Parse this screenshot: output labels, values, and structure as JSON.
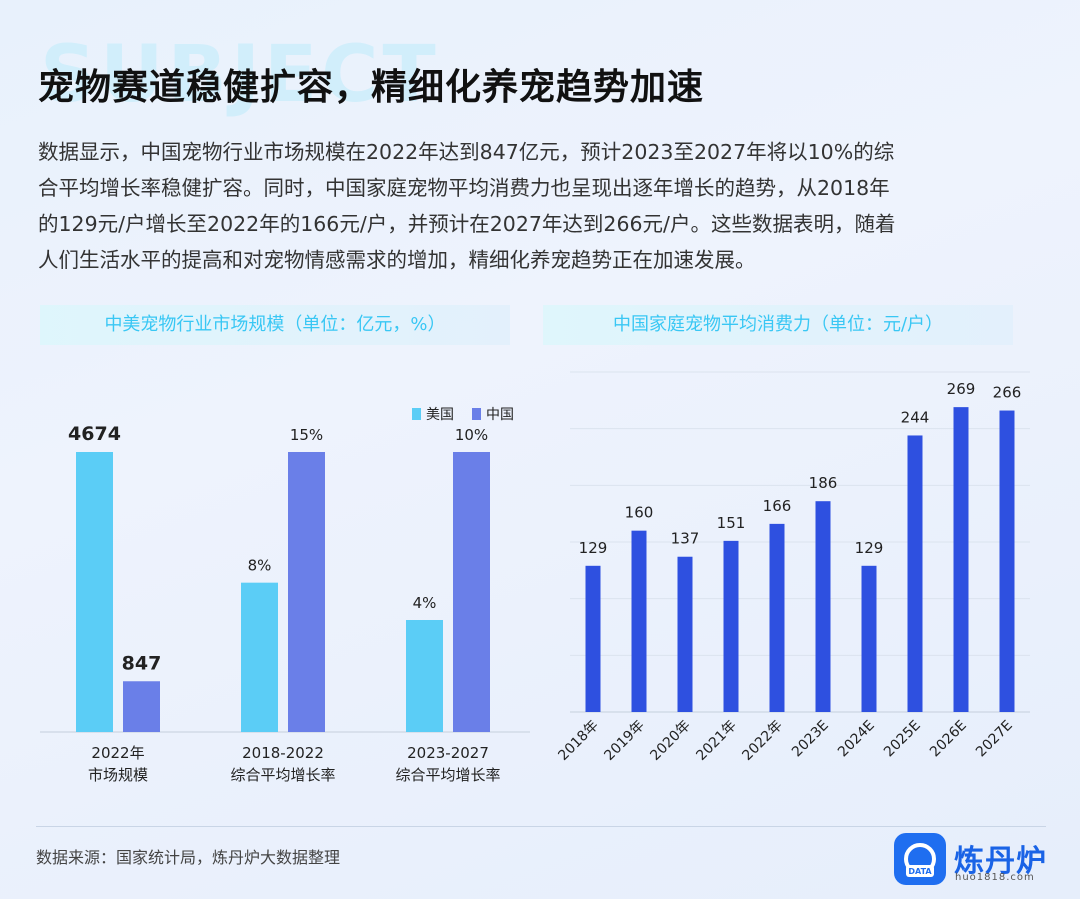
{
  "watermark": "SUBJECT",
  "title": "宠物赛道稳健扩容，精细化养宠趋势加速",
  "description": [
    "数据显示，中国宠物行业市场规模在2022年达到847亿元，预计2023至2027年将以10%的综",
    "合平均增长率稳健扩容。同时，中国家庭宠物平均消费力也呈现出逐年增长的趋势，从2018年",
    "的129元/户增长至2022年的166元/户，并预计在2027年达到266元/户。这些数据表明，随着",
    "人们生活水平的提高和对宠物情感需求的增加，精细化养宠趋势正在加速发展。"
  ],
  "colors": {
    "us": "#5bcdf6",
    "cn": "#6a7fe8",
    "bar2": "#2e50e0",
    "accent": "#39c7f4"
  },
  "chart_data": [
    {
      "type": "bar",
      "title": "中美宠物行业市场规模（单位：亿元，%）",
      "categories": [
        {
          "line1": "2022年",
          "line2": "市场规模"
        },
        {
          "line1": "2018-2022",
          "line2": "综合平均增长率"
        },
        {
          "line1": "2023-2027",
          "line2": "综合平均增长率"
        }
      ],
      "series": [
        {
          "name": "美国",
          "values": [
            4674,
            8,
            4
          ],
          "labels": [
            "4674",
            "8%",
            "4%"
          ]
        },
        {
          "name": "中国",
          "values": [
            847,
            15,
            10
          ],
          "labels": [
            "847",
            "15%",
            "10%"
          ]
        }
      ],
      "legend_position": "top-right"
    },
    {
      "type": "bar",
      "title": "中国家庭宠物平均消费力（单位：元/户）",
      "categories": [
        "2018年",
        "2019年",
        "2020年",
        "2021年",
        "2022年",
        "2023E",
        "2024E",
        "2025E",
        "2026E",
        "2027E"
      ],
      "values": [
        129,
        160,
        137,
        151,
        166,
        186,
        129,
        244,
        269,
        266
      ],
      "ylim": [
        0,
        300
      ],
      "grid": true
    }
  ],
  "footer": {
    "source": "数据来源：国家统计局，炼丹炉大数据整理",
    "logo_name": "炼丹炉",
    "logo_badge": "DATA",
    "logo_url": "huo1818.com"
  }
}
